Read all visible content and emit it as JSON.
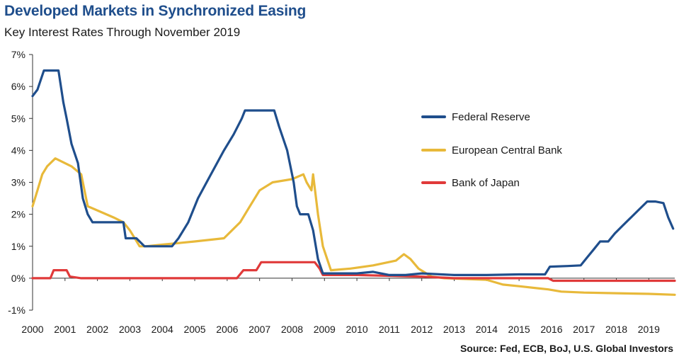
{
  "title": "Developed Markets in Synchronized Easing",
  "subtitle": "Key Interest Rates Through November 2019",
  "source": "Source: Fed, ECB, BoJ, U.S. Global Investors",
  "chart_data": {
    "type": "line",
    "xlim": [
      2000,
      2019.8
    ],
    "ylim": [
      -1,
      7
    ],
    "x_ticks": [
      "2000",
      "2001",
      "2002",
      "2003",
      "2004",
      "2005",
      "2006",
      "2007",
      "2008",
      "2009",
      "2010",
      "2011",
      "2012",
      "2013",
      "2014",
      "2015",
      "2016",
      "2017",
      "2018",
      "2019"
    ],
    "y_ticks": [
      "7%",
      "6%",
      "5%",
      "4%",
      "3%",
      "2%",
      "1%",
      "0%",
      "-1%"
    ],
    "legend_position": "right",
    "series": [
      {
        "name": "Federal Reserve",
        "color": "#1f4e8c",
        "points": [
          [
            2000,
            5.7
          ],
          [
            2000.15,
            5.9
          ],
          [
            2000.35,
            6.5
          ],
          [
            2000.6,
            6.5
          ],
          [
            2000.8,
            6.5
          ],
          [
            2000.95,
            5.5
          ],
          [
            2001.05,
            5.0
          ],
          [
            2001.2,
            4.2
          ],
          [
            2001.4,
            3.6
          ],
          [
            2001.55,
            2.5
          ],
          [
            2001.7,
            2.0
          ],
          [
            2001.85,
            1.75
          ],
          [
            2002,
            1.75
          ],
          [
            2002.5,
            1.75
          ],
          [
            2002.8,
            1.75
          ],
          [
            2002.87,
            1.25
          ],
          [
            2003.2,
            1.25
          ],
          [
            2003.45,
            1.0
          ],
          [
            2003.7,
            1.0
          ],
          [
            2004.3,
            1.0
          ],
          [
            2004.5,
            1.25
          ],
          [
            2004.8,
            1.75
          ],
          [
            2005.1,
            2.5
          ],
          [
            2005.5,
            3.25
          ],
          [
            2005.9,
            4.0
          ],
          [
            2006.2,
            4.5
          ],
          [
            2006.45,
            5.0
          ],
          [
            2006.55,
            5.25
          ],
          [
            2007,
            5.25
          ],
          [
            2007.3,
            5.25
          ],
          [
            2007.45,
            5.25
          ],
          [
            2007.6,
            4.75
          ],
          [
            2007.85,
            4.0
          ],
          [
            2007.95,
            3.5
          ],
          [
            2008.05,
            3.0
          ],
          [
            2008.15,
            2.25
          ],
          [
            2008.25,
            2.0
          ],
          [
            2008.5,
            2.0
          ],
          [
            2008.65,
            1.5
          ],
          [
            2008.8,
            0.6
          ],
          [
            2008.95,
            0.15
          ],
          [
            2009.2,
            0.15
          ],
          [
            2010,
            0.15
          ],
          [
            2010.5,
            0.2
          ],
          [
            2011,
            0.1
          ],
          [
            2011.5,
            0.1
          ],
          [
            2012,
            0.15
          ],
          [
            2013,
            0.1
          ],
          [
            2014,
            0.1
          ],
          [
            2015,
            0.12
          ],
          [
            2015.8,
            0.12
          ],
          [
            2015.95,
            0.36
          ],
          [
            2016.5,
            0.38
          ],
          [
            2016.9,
            0.4
          ],
          [
            2017.1,
            0.65
          ],
          [
            2017.3,
            0.9
          ],
          [
            2017.5,
            1.15
          ],
          [
            2017.75,
            1.15
          ],
          [
            2017.95,
            1.4
          ],
          [
            2018.2,
            1.65
          ],
          [
            2018.45,
            1.9
          ],
          [
            2018.7,
            2.15
          ],
          [
            2018.95,
            2.4
          ],
          [
            2019.2,
            2.4
          ],
          [
            2019.45,
            2.35
          ],
          [
            2019.6,
            1.9
          ],
          [
            2019.75,
            1.55
          ]
        ]
      },
      {
        "name": "European Central Bank",
        "color": "#e8b93a",
        "points": [
          [
            2000,
            2.25
          ],
          [
            2000.15,
            2.75
          ],
          [
            2000.3,
            3.25
          ],
          [
            2000.45,
            3.5
          ],
          [
            2000.7,
            3.75
          ],
          [
            2001.2,
            3.5
          ],
          [
            2001.5,
            3.25
          ],
          [
            2001.7,
            2.25
          ],
          [
            2002.5,
            1.9
          ],
          [
            2002.8,
            1.75
          ],
          [
            2003.0,
            1.5
          ],
          [
            2003.3,
            1.0
          ],
          [
            2003.5,
            1.0
          ],
          [
            2004,
            1.05
          ],
          [
            2005,
            1.15
          ],
          [
            2005.9,
            1.25
          ],
          [
            2006.4,
            1.75
          ],
          [
            2006.7,
            2.25
          ],
          [
            2007,
            2.75
          ],
          [
            2007.4,
            3.0
          ],
          [
            2008,
            3.1
          ],
          [
            2008.35,
            3.25
          ],
          [
            2008.45,
            3.0
          ],
          [
            2008.6,
            2.75
          ],
          [
            2008.65,
            3.25
          ],
          [
            2008.8,
            2.0
          ],
          [
            2008.95,
            1.0
          ],
          [
            2009.2,
            0.25
          ],
          [
            2009.8,
            0.3
          ],
          [
            2010.5,
            0.4
          ],
          [
            2011.2,
            0.55
          ],
          [
            2011.45,
            0.75
          ],
          [
            2011.65,
            0.6
          ],
          [
            2011.9,
            0.3
          ],
          [
            2012.3,
            0.05
          ],
          [
            2012.7,
            0.0
          ],
          [
            2014,
            -0.05
          ],
          [
            2014.5,
            -0.2
          ],
          [
            2015,
            -0.25
          ],
          [
            2015.9,
            -0.35
          ],
          [
            2016.3,
            -0.42
          ],
          [
            2017,
            -0.45
          ],
          [
            2018,
            -0.47
          ],
          [
            2019,
            -0.49
          ],
          [
            2019.8,
            -0.52
          ]
        ]
      },
      {
        "name": "Bank of Japan",
        "color": "#e03a3a",
        "points": [
          [
            2000,
            0.0
          ],
          [
            2000.55,
            0.0
          ],
          [
            2000.65,
            0.25
          ],
          [
            2001.05,
            0.25
          ],
          [
            2001.15,
            0.05
          ],
          [
            2001.5,
            0.0
          ],
          [
            2006.3,
            0.0
          ],
          [
            2006.5,
            0.25
          ],
          [
            2006.9,
            0.25
          ],
          [
            2007.05,
            0.5
          ],
          [
            2008.7,
            0.5
          ],
          [
            2008.85,
            0.3
          ],
          [
            2008.95,
            0.1
          ],
          [
            2010,
            0.1
          ],
          [
            2012,
            0.05
          ],
          [
            2013,
            0.0
          ],
          [
            2015.9,
            0.0
          ],
          [
            2016.05,
            -0.08
          ],
          [
            2019.8,
            -0.08
          ]
        ]
      }
    ]
  }
}
